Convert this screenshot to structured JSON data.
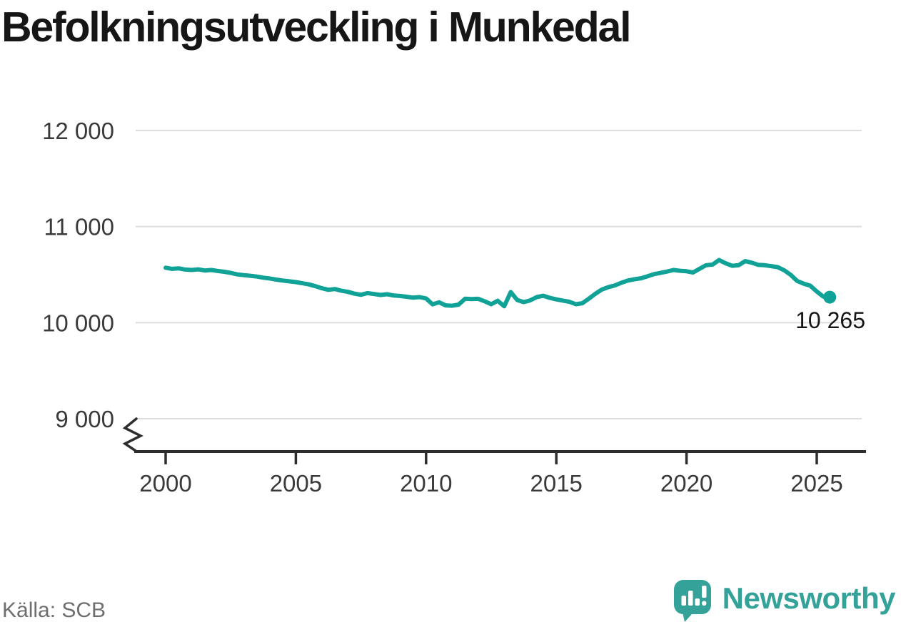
{
  "title": "Befolkningsutveckling i Munkedal",
  "source": "Källa: SCB",
  "brand": {
    "name": "Newsworthy",
    "color": "#35a29a"
  },
  "colors": {
    "line": "#10a296",
    "grid": "#dddddd",
    "axis": "#2d2d2d",
    "title": "#161616",
    "tick_label": "#3a3a3a",
    "source_text": "#6e6e6e",
    "annotation": "#161616"
  },
  "chart_data": {
    "type": "line",
    "title": "Befolkningsutveckling i Munkedal",
    "xlabel": "",
    "ylabel": "",
    "grid": "horizontal",
    "axis_break": true,
    "legend": "none",
    "xlim": [
      1998.8,
      2026.9
    ],
    "ylim": [
      8800,
      12200
    ],
    "end_label": "10 265",
    "end_value": 10265,
    "yticks": [
      {
        "value": 9000,
        "label": "9 000"
      },
      {
        "value": 10000,
        "label": "10 000"
      },
      {
        "value": 11000,
        "label": "11 000"
      },
      {
        "value": 12000,
        "label": "12 000"
      }
    ],
    "xticks": [
      {
        "value": 2000,
        "label": "2000"
      },
      {
        "value": 2005,
        "label": "2005"
      },
      {
        "value": 2010,
        "label": "2010"
      },
      {
        "value": 2015,
        "label": "2015"
      },
      {
        "value": 2020,
        "label": "2020"
      },
      {
        "value": 2025,
        "label": "2025"
      }
    ],
    "series": [
      {
        "name": "Befolkning i Munkedal",
        "color": "#10a296",
        "points": [
          [
            2000,
            10572
          ],
          [
            2000.25,
            10560
          ],
          [
            2000.5,
            10565
          ],
          [
            2000.75,
            10553
          ],
          [
            2001,
            10548
          ],
          [
            2001.25,
            10555
          ],
          [
            2001.5,
            10543
          ],
          [
            2001.75,
            10548
          ],
          [
            2002,
            10538
          ],
          [
            2002.25,
            10530
          ],
          [
            2002.5,
            10518
          ],
          [
            2002.75,
            10502
          ],
          [
            2003,
            10495
          ],
          [
            2003.25,
            10488
          ],
          [
            2003.5,
            10480
          ],
          [
            2003.75,
            10468
          ],
          [
            2004,
            10460
          ],
          [
            2004.25,
            10448
          ],
          [
            2004.5,
            10438
          ],
          [
            2004.75,
            10430
          ],
          [
            2005,
            10422
          ],
          [
            2005.25,
            10410
          ],
          [
            2005.5,
            10398
          ],
          [
            2005.75,
            10380
          ],
          [
            2006,
            10358
          ],
          [
            2006.25,
            10342
          ],
          [
            2006.5,
            10350
          ],
          [
            2006.75,
            10332
          ],
          [
            2007,
            10320
          ],
          [
            2007.25,
            10302
          ],
          [
            2007.5,
            10290
          ],
          [
            2007.75,
            10308
          ],
          [
            2008,
            10298
          ],
          [
            2008.25,
            10288
          ],
          [
            2008.5,
            10296
          ],
          [
            2008.75,
            10283
          ],
          [
            2009,
            10278
          ],
          [
            2009.25,
            10270
          ],
          [
            2009.5,
            10260
          ],
          [
            2009.75,
            10266
          ],
          [
            2010,
            10252
          ],
          [
            2010.25,
            10190
          ],
          [
            2010.5,
            10212
          ],
          [
            2010.75,
            10180
          ],
          [
            2011,
            10176
          ],
          [
            2011.25,
            10188
          ],
          [
            2011.5,
            10250
          ],
          [
            2011.75,
            10246
          ],
          [
            2012,
            10248
          ],
          [
            2012.25,
            10222
          ],
          [
            2012.5,
            10192
          ],
          [
            2012.75,
            10228
          ],
          [
            2013,
            10170
          ],
          [
            2013.25,
            10318
          ],
          [
            2013.5,
            10236
          ],
          [
            2013.75,
            10214
          ],
          [
            2014,
            10232
          ],
          [
            2014.25,
            10266
          ],
          [
            2014.5,
            10280
          ],
          [
            2014.75,
            10258
          ],
          [
            2015,
            10242
          ],
          [
            2015.25,
            10230
          ],
          [
            2015.5,
            10218
          ],
          [
            2015.75,
            10192
          ],
          [
            2016,
            10202
          ],
          [
            2016.25,
            10250
          ],
          [
            2016.5,
            10300
          ],
          [
            2016.75,
            10345
          ],
          [
            2017,
            10370
          ],
          [
            2017.25,
            10388
          ],
          [
            2017.5,
            10415
          ],
          [
            2017.75,
            10438
          ],
          [
            2018,
            10452
          ],
          [
            2018.25,
            10462
          ],
          [
            2018.5,
            10482
          ],
          [
            2018.75,
            10505
          ],
          [
            2019,
            10518
          ],
          [
            2019.25,
            10532
          ],
          [
            2019.5,
            10548
          ],
          [
            2019.75,
            10540
          ],
          [
            2020,
            10535
          ],
          [
            2020.25,
            10522
          ],
          [
            2020.5,
            10560
          ],
          [
            2020.75,
            10598
          ],
          [
            2021,
            10605
          ],
          [
            2021.25,
            10652
          ],
          [
            2021.5,
            10618
          ],
          [
            2021.75,
            10592
          ],
          [
            2022,
            10598
          ],
          [
            2022.25,
            10640
          ],
          [
            2022.5,
            10625
          ],
          [
            2022.75,
            10602
          ],
          [
            2023,
            10598
          ],
          [
            2023.25,
            10588
          ],
          [
            2023.5,
            10578
          ],
          [
            2023.75,
            10545
          ],
          [
            2024,
            10498
          ],
          [
            2024.25,
            10434
          ],
          [
            2024.5,
            10405
          ],
          [
            2024.75,
            10385
          ],
          [
            2025,
            10325
          ],
          [
            2025.25,
            10272
          ],
          [
            2025.5,
            10265
          ]
        ]
      }
    ]
  }
}
